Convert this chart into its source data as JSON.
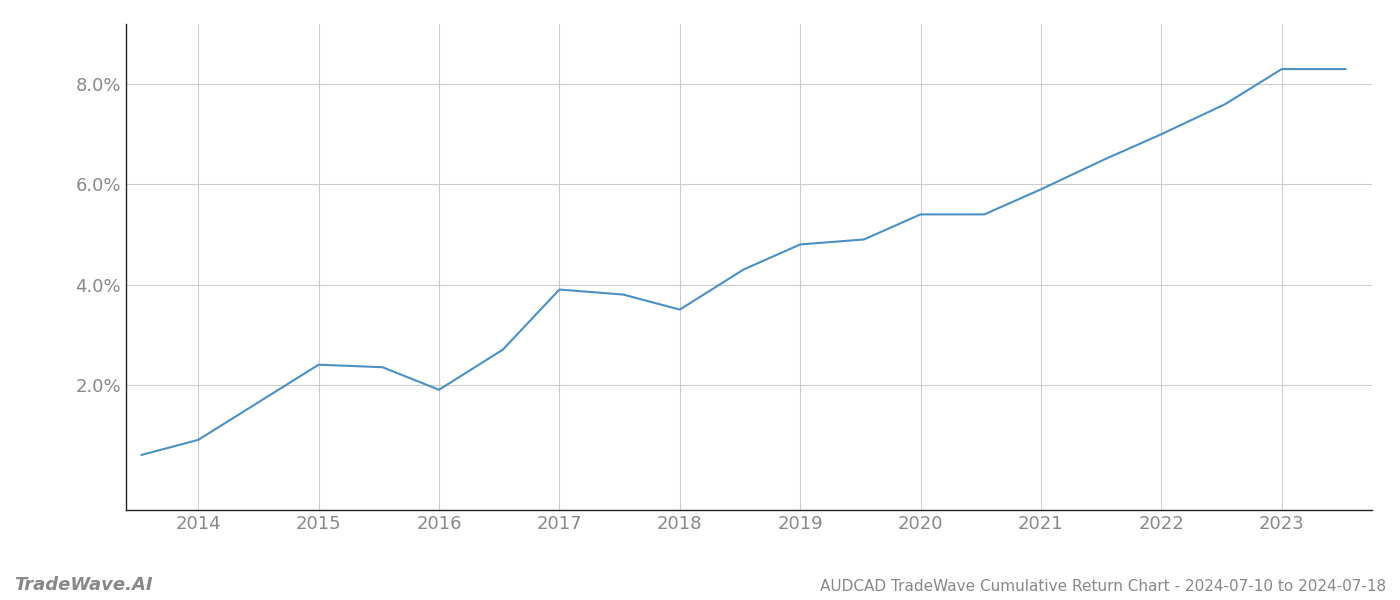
{
  "x": [
    2013.53,
    2014.0,
    2015.0,
    2015.53,
    2016.0,
    2016.53,
    2017.0,
    2017.53,
    2018.0,
    2018.53,
    2019.0,
    2019.53,
    2020.0,
    2020.53,
    2021.0,
    2021.53,
    2022.0,
    2022.53,
    2023.0,
    2023.53
  ],
  "y": [
    0.006,
    0.009,
    0.024,
    0.0235,
    0.019,
    0.027,
    0.039,
    0.038,
    0.035,
    0.043,
    0.048,
    0.049,
    0.054,
    0.054,
    0.059,
    0.065,
    0.07,
    0.076,
    0.083,
    0.083
  ],
  "line_color": "#4a90c4",
  "background_color": "#ffffff",
  "grid_color": "#cccccc",
  "text_color": "#888888",
  "title_text": "AUDCAD TradeWave Cumulative Return Chart - 2024-07-10 to 2024-07-18",
  "watermark_text": "TradeWave.AI",
  "xlim": [
    2013.4,
    2023.75
  ],
  "ylim": [
    -0.005,
    0.092
  ],
  "yticks": [
    0.02,
    0.04,
    0.06,
    0.08
  ],
  "xticks": [
    2014,
    2015,
    2016,
    2017,
    2018,
    2019,
    2020,
    2021,
    2022,
    2023
  ],
  "linewidth": 1.5,
  "figsize": [
    14.0,
    6.0
  ],
  "dpi": 100
}
